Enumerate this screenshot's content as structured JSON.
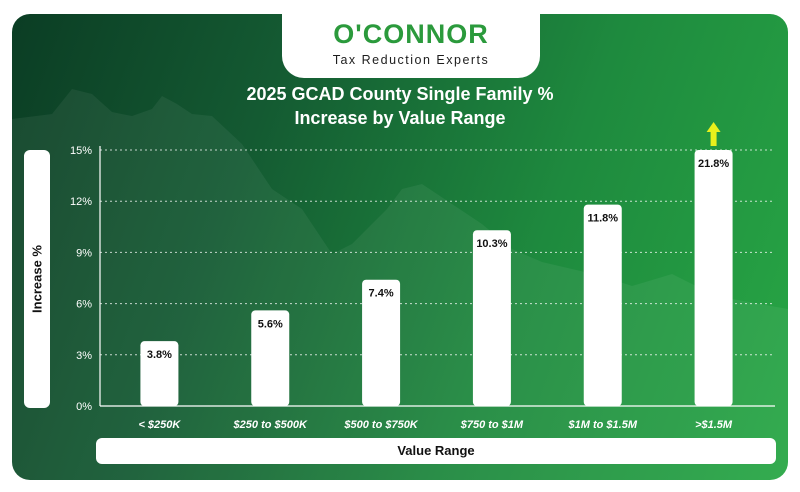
{
  "brand": {
    "logo_text": "O'CONNOR",
    "tagline": "Tax Reduction Experts"
  },
  "chart_data": {
    "type": "bar",
    "title": "2025 GCAD County Single Family % Increase by Value Range",
    "title_lines": [
      "2025 GCAD County Single Family %",
      "Increase by Value Range"
    ],
    "xlabel": "Value Range",
    "ylabel": "Increase %",
    "categories": [
      "< $250K",
      "$250 to $500K",
      "$500 to $750K",
      "$750 to $1M",
      "$1M to $1.5M",
      ">$1.5M"
    ],
    "values": [
      3.8,
      5.6,
      7.4,
      10.3,
      11.8,
      21.8
    ],
    "value_labels": [
      "3.8%",
      "5.6%",
      "7.4%",
      "10.3%",
      "11.8%",
      "21.8%"
    ],
    "y_ticks": [
      0,
      3,
      6,
      9,
      12,
      15
    ],
    "y_tick_labels": [
      "0%",
      "3%",
      "6%",
      "9%",
      "12%",
      "15%"
    ],
    "ylim": [
      0,
      15
    ],
    "clipped_indicator": "arrow-up on bar exceeding axis maximum",
    "grid": true,
    "colors": {
      "bar": "#ffffff",
      "arrow": "#e8f01c",
      "background_dark": "#0b3d24",
      "background_light": "#28a745"
    }
  }
}
